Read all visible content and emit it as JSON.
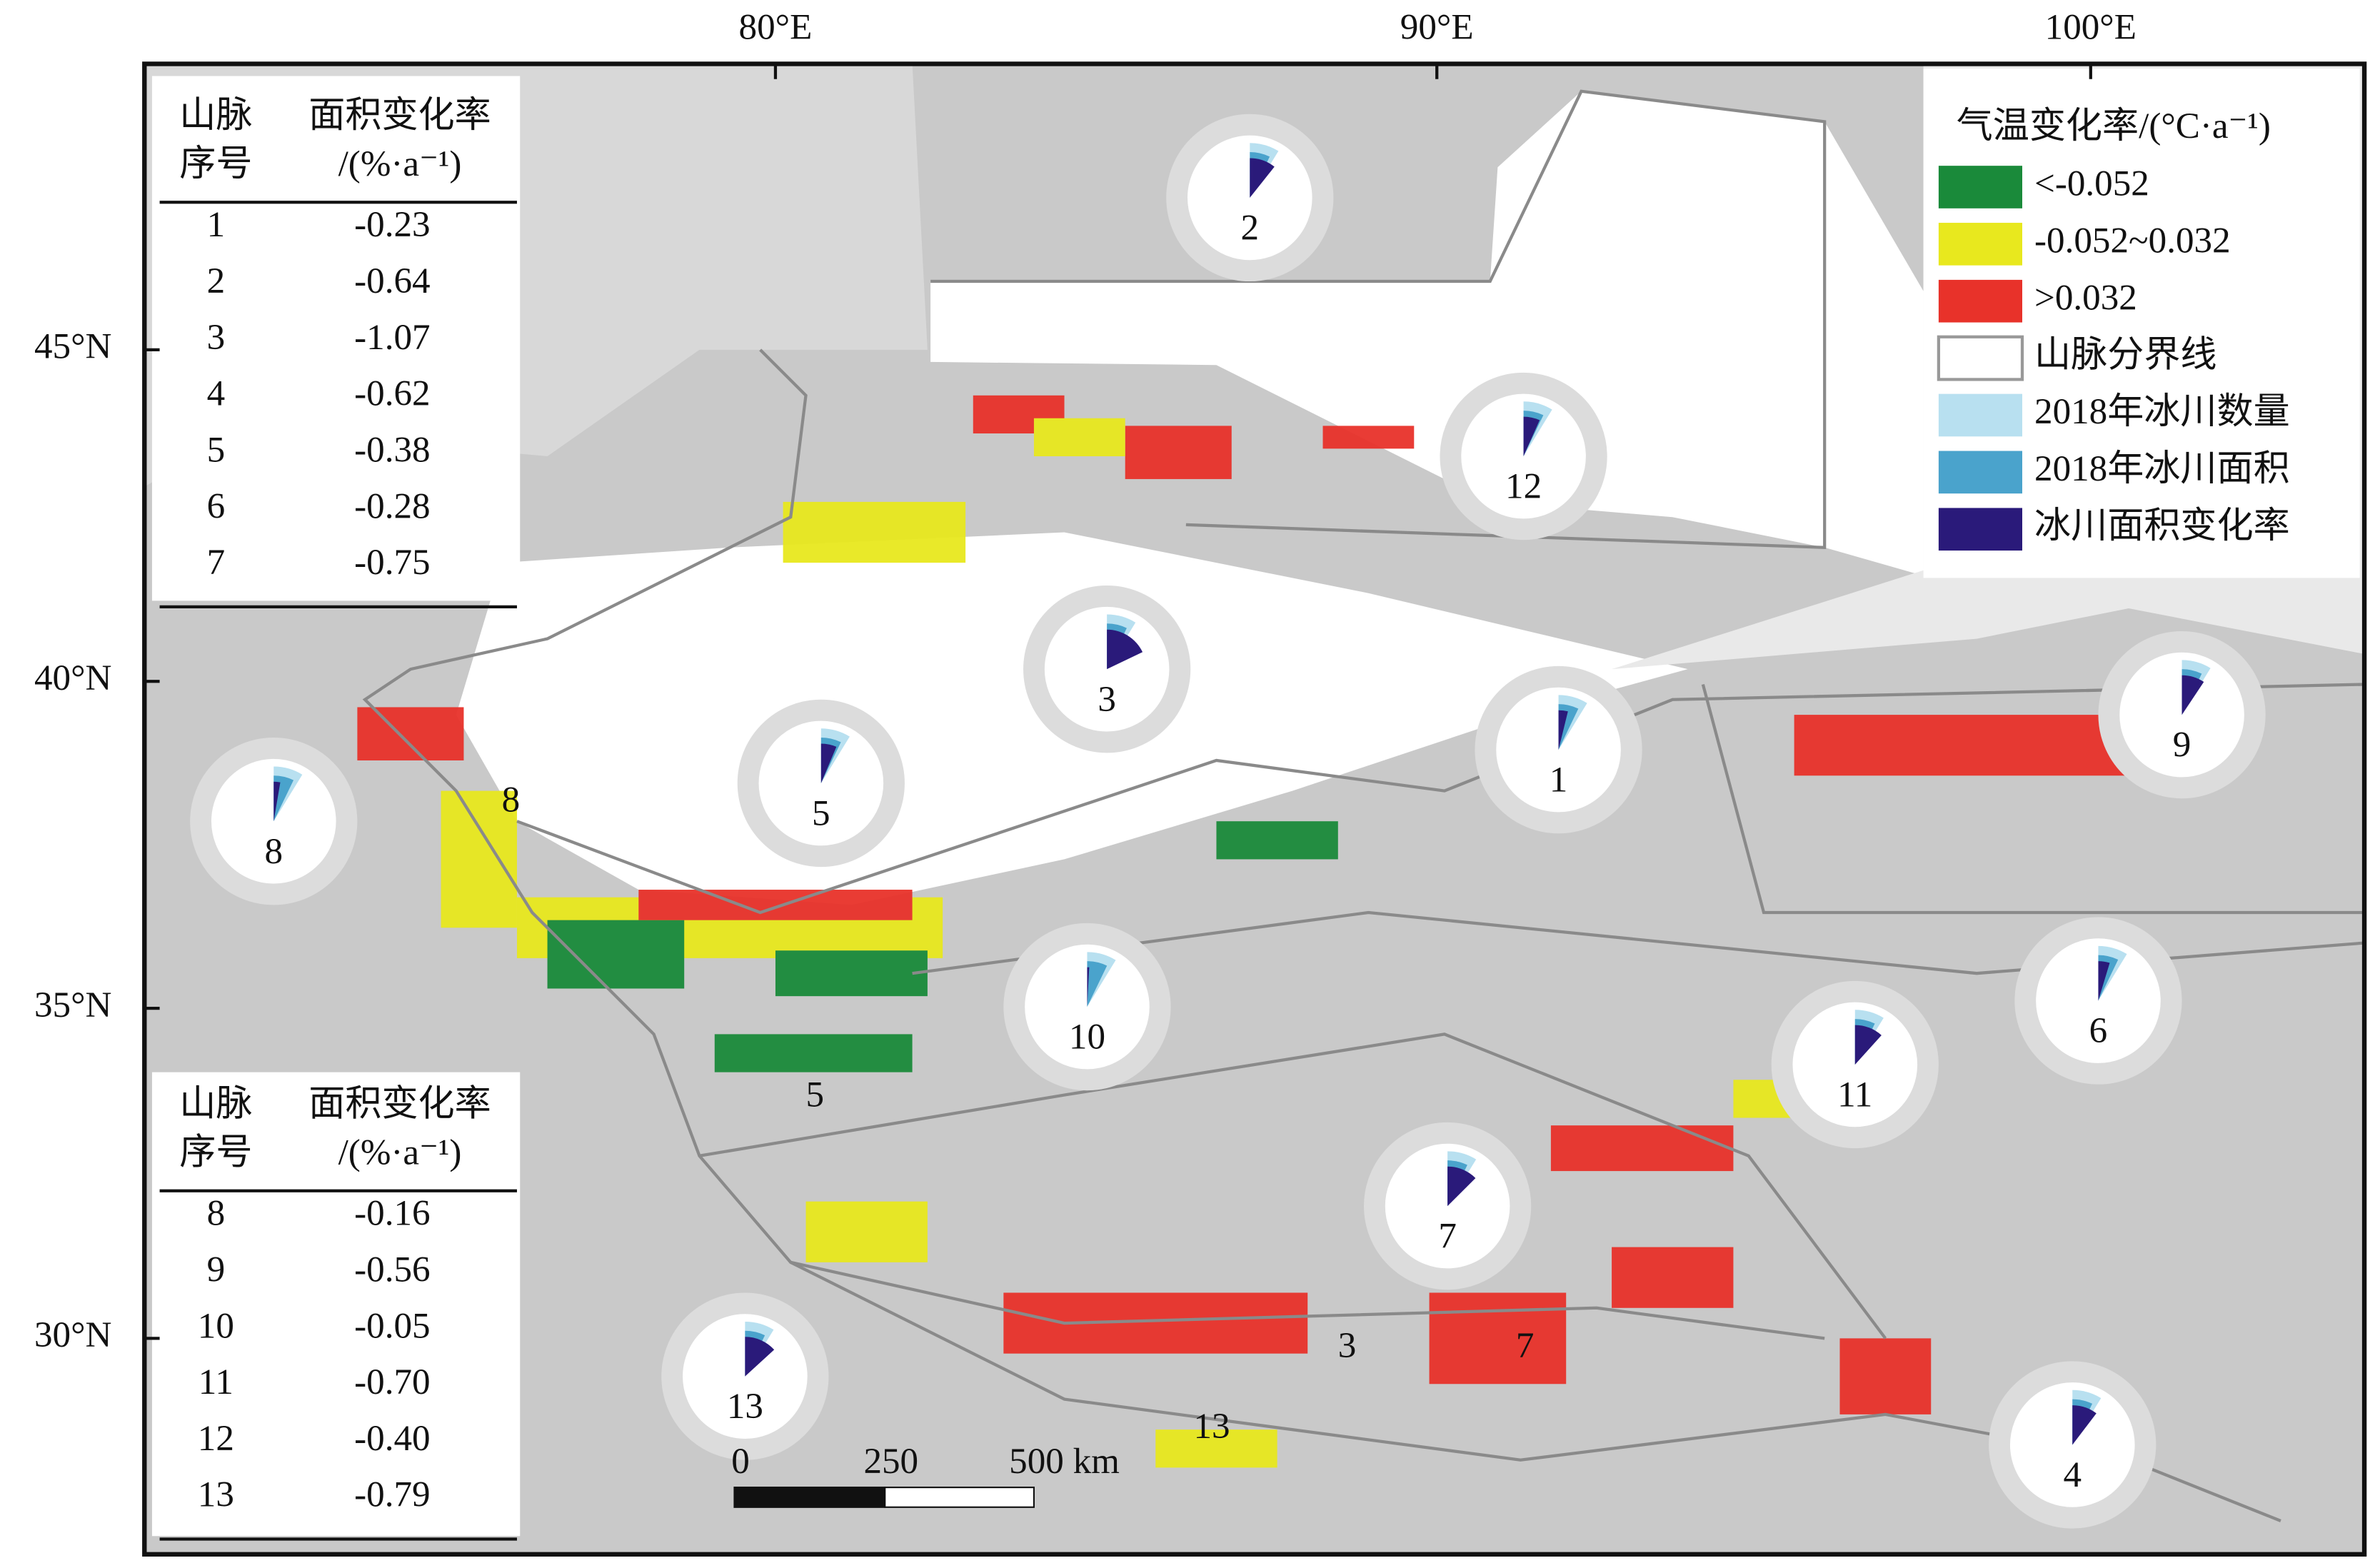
{
  "map": {
    "lon_labels": [
      "80°E",
      "90°E",
      "100°E"
    ],
    "lat_labels": [
      "45°N",
      "40°N",
      "35°N",
      "30°N"
    ],
    "tables": [
      {
        "header": [
          [
            "山脉",
            "序号"
          ],
          [
            "面积变化率",
            "/(%·a⁻¹)"
          ]
        ],
        "rows": [
          [
            "1",
            "-0.23"
          ],
          [
            "2",
            "-0.64"
          ],
          [
            "3",
            "-1.07"
          ],
          [
            "4",
            "-0.62"
          ],
          [
            "5",
            "-0.38"
          ],
          [
            "6",
            "-0.28"
          ],
          [
            "7",
            "-0.75"
          ]
        ]
      },
      {
        "header": [
          [
            "山脉",
            "序号"
          ],
          [
            "面积变化率",
            "/(%·a⁻¹)"
          ]
        ],
        "rows": [
          [
            "8",
            "-0.16"
          ],
          [
            "9",
            "-0.56"
          ],
          [
            "10",
            "-0.05"
          ],
          [
            "11",
            "-0.70"
          ],
          [
            "12",
            "-0.40"
          ],
          [
            "13",
            "-0.79"
          ]
        ]
      }
    ],
    "legend": {
      "title": "气温变化率/(°C·a⁻¹)",
      "items": [
        {
          "label": "<-0.052",
          "color": "#1a8a3a"
        },
        {
          "label": "-0.052~0.032",
          "color": "#e8e81e"
        },
        {
          "label": ">0.032",
          "color": "#e8322a"
        },
        {
          "label": "山脉分界线",
          "color": "#ffffff"
        },
        {
          "label": "2018年冰川数量",
          "color": "#b8e0f0"
        },
        {
          "label": "2018年冰川面积",
          "color": "#4aa3cc"
        },
        {
          "label": "冰川面积变化率",
          "color": "#2a1a7a"
        }
      ]
    },
    "pies": [
      "2",
      "12",
      "3",
      "1",
      "9",
      "5",
      "8",
      "10",
      "11",
      "6",
      "7",
      "13",
      "4"
    ],
    "region_labels": [
      "8",
      "5",
      "3",
      "7",
      "13"
    ],
    "scale_bar": [
      "0",
      "250",
      "500 km"
    ]
  }
}
